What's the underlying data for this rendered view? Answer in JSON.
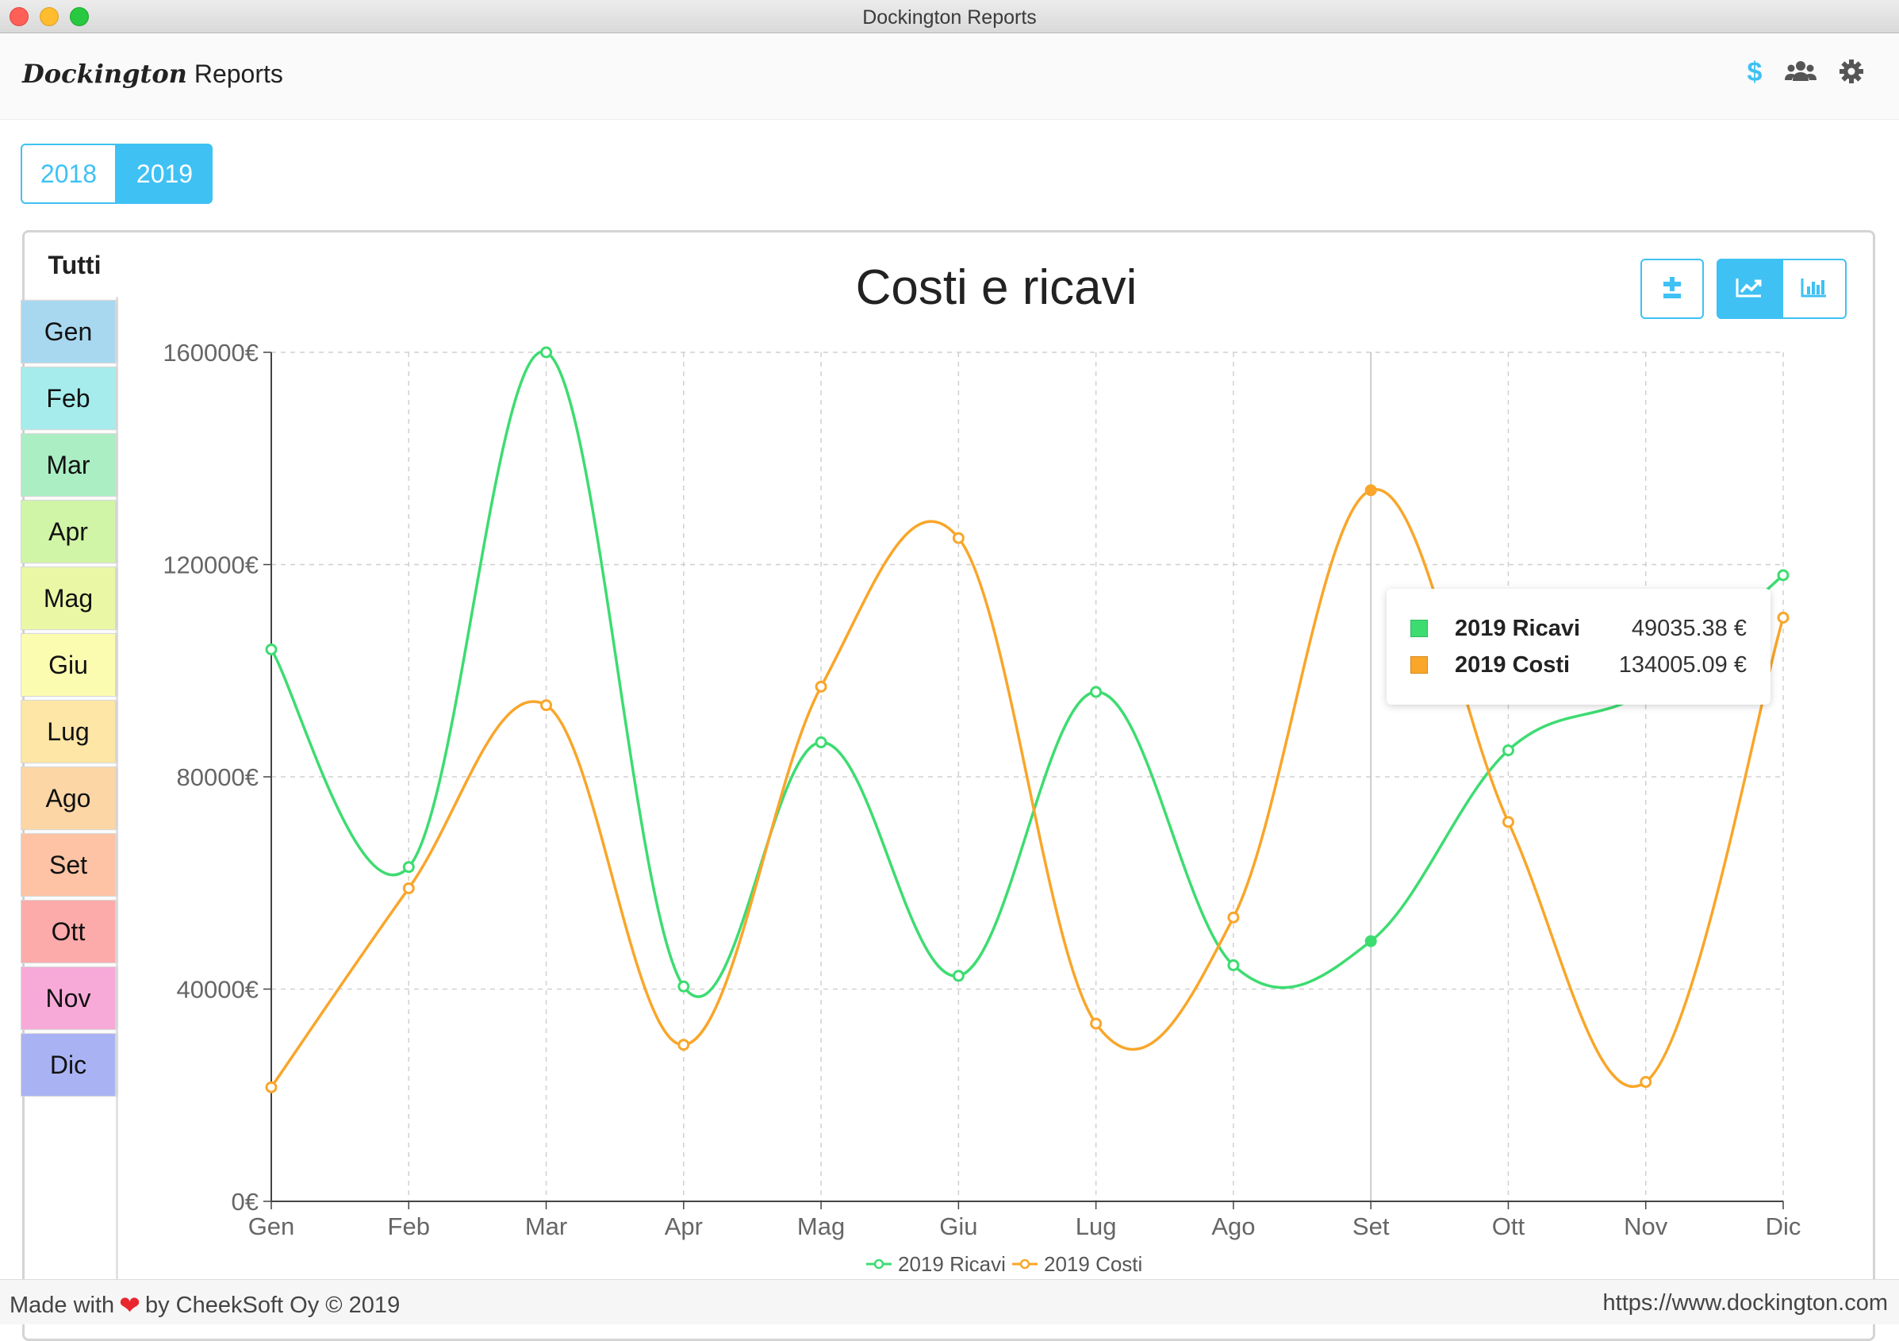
{
  "window": {
    "title": "Dockington Reports"
  },
  "header": {
    "brand_script": "Dockington",
    "brand_plain": "Reports",
    "icons": [
      "dollar-icon",
      "users-icon",
      "gear-icon"
    ]
  },
  "year_selector": {
    "options": [
      "2018",
      "2019"
    ],
    "selected": "2019"
  },
  "month_tabs": {
    "all_label": "Tutti",
    "months": [
      {
        "label": "Gen",
        "color": "#a8d8f0"
      },
      {
        "label": "Feb",
        "color": "#a6ecec"
      },
      {
        "label": "Mar",
        "color": "#abeec3"
      },
      {
        "label": "Apr",
        "color": "#d0f5a6"
      },
      {
        "label": "Mag",
        "color": "#eaf8a6"
      },
      {
        "label": "Giu",
        "color": "#fbfcb0"
      },
      {
        "label": "Lug",
        "color": "#fde6a6"
      },
      {
        "label": "Ago",
        "color": "#fdd6a6"
      },
      {
        "label": "Set",
        "color": "#fdc3a4"
      },
      {
        "label": "Ott",
        "color": "#fdaaaa"
      },
      {
        "label": "Nov",
        "color": "#f7aad8"
      },
      {
        "label": "Dic",
        "color": "#a9b3f3"
      }
    ]
  },
  "chart_tools": {
    "buttons": [
      {
        "name": "plus-minus-button",
        "icon": "plus-minus-icon",
        "active": false
      },
      {
        "name": "line-chart-button",
        "icon": "line-chart-icon",
        "active": true
      },
      {
        "name": "bar-chart-button",
        "icon": "bar-chart-icon",
        "active": false
      }
    ]
  },
  "chart_data": {
    "type": "line",
    "title": "Costi e ricavi",
    "categories": [
      "Gen",
      "Feb",
      "Mar",
      "Apr",
      "Mag",
      "Giu",
      "Lug",
      "Ago",
      "Set",
      "Ott",
      "Nov",
      "Dic"
    ],
    "ylim": [
      0,
      160000
    ],
    "y_ticks": [
      0,
      40000,
      80000,
      120000,
      160000
    ],
    "y_tick_labels": [
      "0€",
      "40000€",
      "80000€",
      "120000€",
      "160000€"
    ],
    "grid": true,
    "legend_position": "bottom",
    "series": [
      {
        "name": "2019 Ricavi",
        "color": "#3ddc71",
        "values": [
          104000,
          63000,
          160000,
          40500,
          86500,
          42500,
          96000,
          44500,
          49035.38,
          85000,
          96000,
          118000
        ]
      },
      {
        "name": "2019 Costi",
        "color": "#f9a62a",
        "values": [
          21500,
          59000,
          93500,
          29500,
          97000,
          125000,
          33500,
          53500,
          134005.09,
          71500,
          22500,
          110000
        ]
      }
    ],
    "hover_category": "Set",
    "tooltip": [
      {
        "name": "2019 Ricavi",
        "value": "49035.38 €",
        "color": "#3ddc71"
      },
      {
        "name": "2019 Costi",
        "value": "134005.09 €",
        "color": "#f9a62a"
      }
    ]
  },
  "footer": {
    "made_with": "Made with",
    "by": "by CheekSoft Oy © 2019",
    "url": "https://www.dockington.com"
  }
}
